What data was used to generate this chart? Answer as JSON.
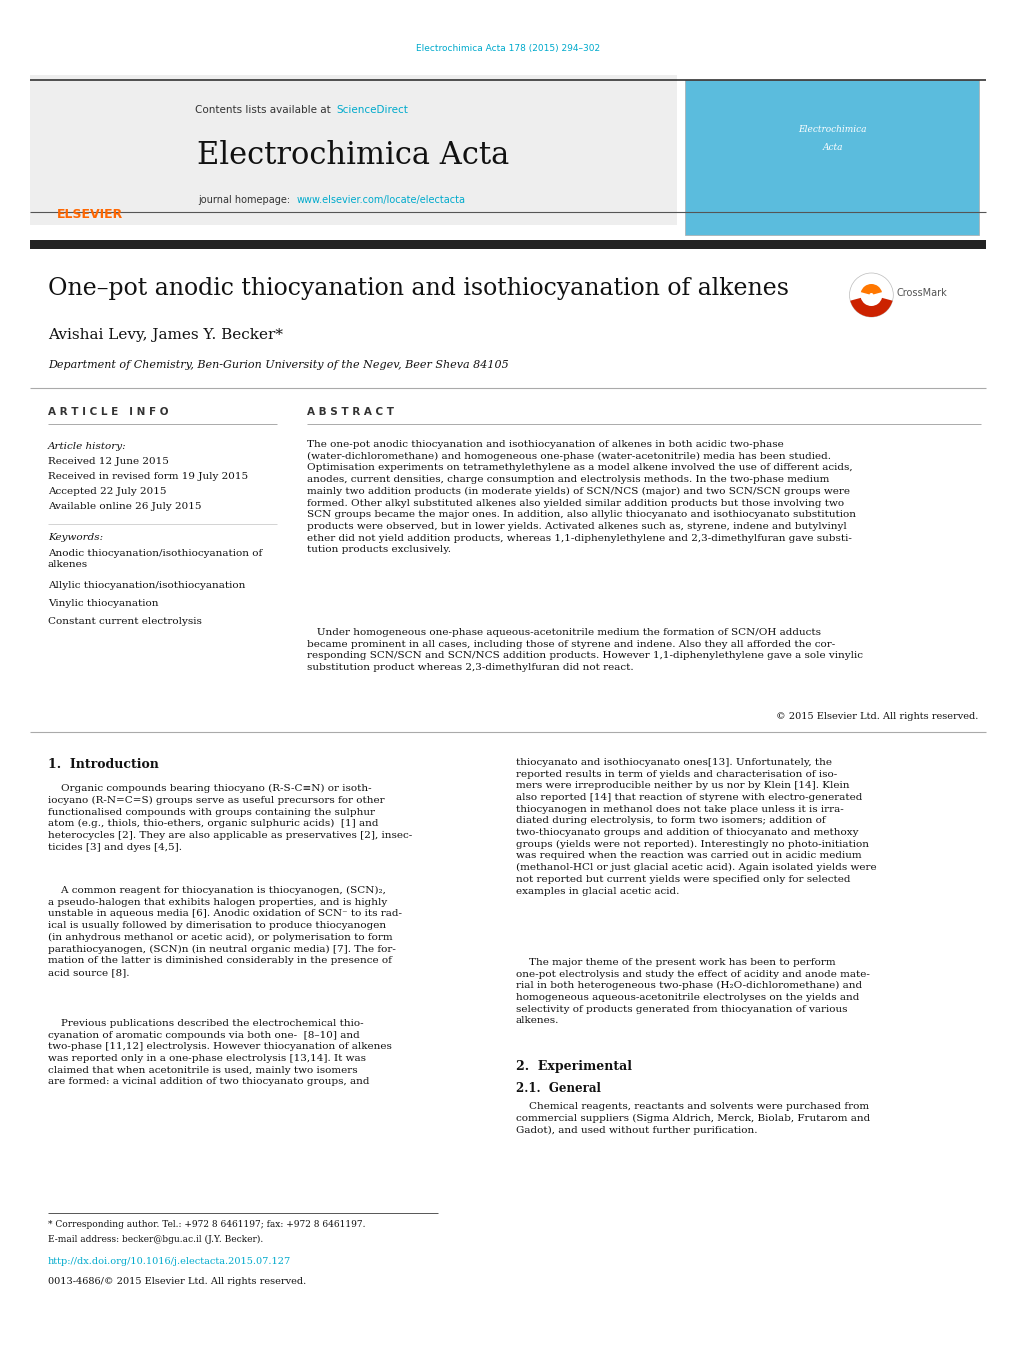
{
  "page_width": 10.2,
  "page_height": 13.51,
  "background_color": "#ffffff",
  "link_color": "#00AACC",
  "top_link_text": "Electrochimica Acta 178 (2015) 294–302",
  "header_title": "Electrochimica Acta",
  "header_contents_text": "Contents lists available at ",
  "header_sciencedirect": "ScienceDirect",
  "header_journal_hp": "journal homepage: ",
  "header_journal_url": "www.elsevier.com/locate/electacta",
  "article_title": "One–pot anodic thiocyanation and isothiocyanation of alkenes",
  "authors": "Avishai Levy, James Y. Becker*",
  "affiliation": "Department of Chemistry, Ben-Gurion University of the Negev, Beer Sheva 84105",
  "article_info_header": "A R T I C L E   I N F O",
  "abstract_header": "A B S T R A C T",
  "article_history_label": "Article history:",
  "received_date": "Received 12 June 2015",
  "received_revised": "Received in revised form 19 July 2015",
  "accepted": "Accepted 22 July 2015",
  "available": "Available online 26 July 2015",
  "keywords_label": "Keywords:",
  "keywords": [
    "Anodic thiocyanation/isothiocyanation of\nalkenes",
    "Allylic thiocyanation/isothiocyanation",
    "Vinylic thiocyanation",
    "Constant current electrolysis"
  ],
  "abstract_text": "The one-pot anodic thiocyanation and isothiocyanation of alkenes in both acidic two-phase\n(water-dichloromethane) and homogeneous one-phase (water-acetonitrile) media has been studied.\nOptimisation experiments on tetramethylethylene as a model alkene involved the use of different acids,\nanodes, current densities, charge consumption and electrolysis methods. In the two-phase medium\nmainly two addition products (in moderate yields) of SCN/NCS (major) and two SCN/SCN groups were\nformed. Other alkyl substituted alkenes also yielded similar addition products but those involving two\nSCN groups became the major ones. In addition, also allylic thiocyanato and isothiocyanato substitution\nproducts were observed, but in lower yields. Activated alkenes such as, styrene, indene and butylvinyl\nether did not yield addition products, whereas 1,1-diphenylethylene and 2,3-dimethylfuran gave substi-\ntution products exclusively.",
  "abstract_text2": "   Under homogeneous one-phase aqueous-acetonitrile medium the formation of SCN/OH adducts\nbecame prominent in all cases, including those of styrene and indene. Also they all afforded the cor-\nresponding SCN/SCN and SCN/NCS addition products. However 1,1-diphenylethylene gave a sole vinylic\nsubstitution product whereas 2,3-dimethylfuran did not react.",
  "copyright": "© 2015 Elsevier Ltd. All rights reserved.",
  "section1_header": "1.  Introduction",
  "intro_text1": "    Organic compounds bearing thiocyano (R-S-C≡N) or isoth-\niocyano (R-N=C=S) groups serve as useful precursors for other\nfunctionalised compounds with groups containing the sulphur\natom (e.g., thiols, thio-ethers, organic sulphuric acids)  [1] and\nheterocycles [2]. They are also applicable as preservatives [2], insec-\nticides [3] and dyes [4,5].",
  "intro_text2": "    A common reagent for thiocyanation is thiocyanogen, (SCN)₂,\na pseudo-halogen that exhibits halogen properties, and is highly\nunstable in aqueous media [6]. Anodic oxidation of SCN⁻ to its rad-\nical is usually followed by dimerisation to produce thiocyanogen\n(in anhydrous methanol or acetic acid), or polymerisation to form\nparathiocyanogen, (SCN)n (in neutral organic media) [7]. The for-\nmation of the latter is diminished considerably in the presence of\nacid source [8].",
  "intro_text3": "    Previous publications described the electrochemical thio-\ncyanation of aromatic compounds via both one-  [8–10] and\ntwo-phase [11,12] electrolysis. However thiocyanation of alkenes\nwas reported only in a one-phase electrolysis [13,14]. It was\nclaimed that when acetonitrile is used, mainly two isomers\nare formed: a vicinal addition of two thiocyanato groups, and",
  "right_col_text1": "thiocyanato and isothiocyanato ones[13]. Unfortunately, the\nreported results in term of yields and characterisation of iso-\nmers were irreproducible neither by us nor by Klein [14]. Klein\nalso reported [14] that reaction of styrene with electro-generated\nthiocyanogen in methanol does not take place unless it is irra-\ndiated during electrolysis, to form two isomers; addition of\ntwo-thiocyanato groups and addition of thiocyanato and methoxy\ngroups (yields were not reported). Interestingly no photo-initiation\nwas required when the reaction was carried out in acidic medium\n(methanol-HCl or just glacial acetic acid). Again isolated yields were\nnot reported but current yields were specified only for selected\nexamples in glacial acetic acid.",
  "right_col_text2": "    The major theme of the present work has been to perform\none-pot electrolysis and study the effect of acidity and anode mate-\nrial in both heterogeneous two-phase (H₂O-dichloromethane) and\nhomogeneous aqueous-acetonitrile electrolyses on the yields and\nselectivity of products generated from thiocyanation of various\nalkenes.",
  "section2_header": "2.  Experimental",
  "section21_header": "2.1.  General",
  "experimental_text": "    Chemical reagents, reactants and solvents were purchased from\ncommercial suppliers (Sigma Aldrich, Merck, Biolab, Frutarom and\nGadot), and used without further purification.",
  "footer_note": "* Corresponding author. Tel.: +972 8 6461197; fax: +972 8 6461197.",
  "footer_email": "E-mail address: becker@bgu.ac.il (J.Y. Becker).",
  "footer_doi": "http://dx.doi.org/10.1016/j.electacta.2015.07.127",
  "footer_issn": "0013-4686/© 2015 Elsevier Ltd. All rights reserved.",
  "text_color": "#000000",
  "gray_color": "#555555",
  "elsevier_orange": "#FF6600",
  "header_bg": "#eeeeee",
  "divider_dark": "#222222",
  "divider_light": "#aaaaaa"
}
